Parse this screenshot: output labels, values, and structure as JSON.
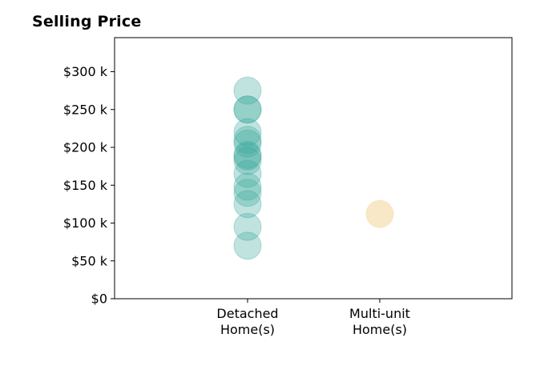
{
  "chart_data": {
    "type": "scatter",
    "title": "Selling Price",
    "xlabel": "",
    "ylabel": "",
    "categories": [
      [
        "Detached",
        "Home(s)"
      ],
      [
        "Multi-unit",
        "Home(s)"
      ]
    ],
    "ylim": [
      0,
      345000
    ],
    "yticks": [
      0,
      50000,
      100000,
      150000,
      200000,
      250000,
      300000
    ],
    "ytick_labels": [
      "$0",
      "$50 k",
      "$100 k",
      "$150 k",
      "$200 k",
      "$250 k",
      "$300 k"
    ],
    "grid": false,
    "series": [
      {
        "category_index": 0,
        "color": "#3aa89b",
        "values": [
          275000,
          250000,
          250000,
          220000,
          210000,
          205000,
          190000,
          188000,
          182000,
          165000,
          148000,
          140000,
          125000,
          95000,
          70000
        ]
      },
      {
        "category_index": 1,
        "color": "#f3d9a4",
        "values": [
          112000
        ]
      }
    ]
  }
}
